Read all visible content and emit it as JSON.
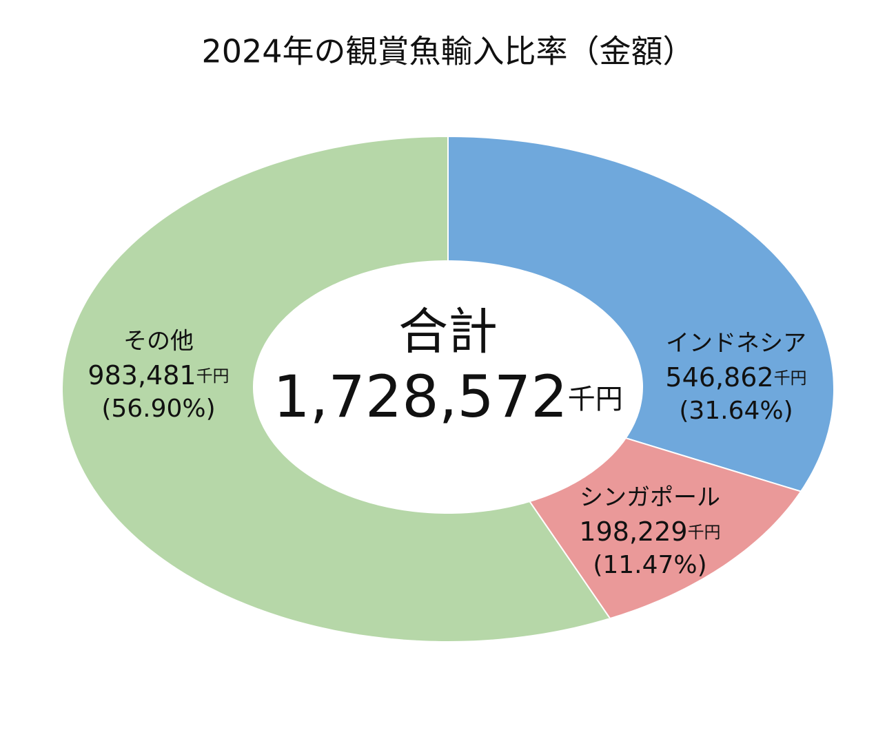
{
  "chart_data": {
    "type": "donut",
    "title": "2024年の観賞魚輸入比率（金額）",
    "categories": [
      "インドネシア",
      "シンガポール",
      "その他"
    ],
    "values": [
      546862,
      198229,
      983481
    ],
    "value_labels": [
      "546,862",
      "198,229",
      "983,481"
    ],
    "unit": "千円",
    "percentages": [
      31.64,
      11.47,
      56.9
    ],
    "percentage_labels": [
      "(31.64%)",
      "(11.47%)",
      "(56.90%)"
    ],
    "colors": [
      "#6fa8dc",
      "#ea9999",
      "#b6d7a8"
    ],
    "center_label": "合計",
    "total": 1728572,
    "total_label": "1,728,572"
  }
}
